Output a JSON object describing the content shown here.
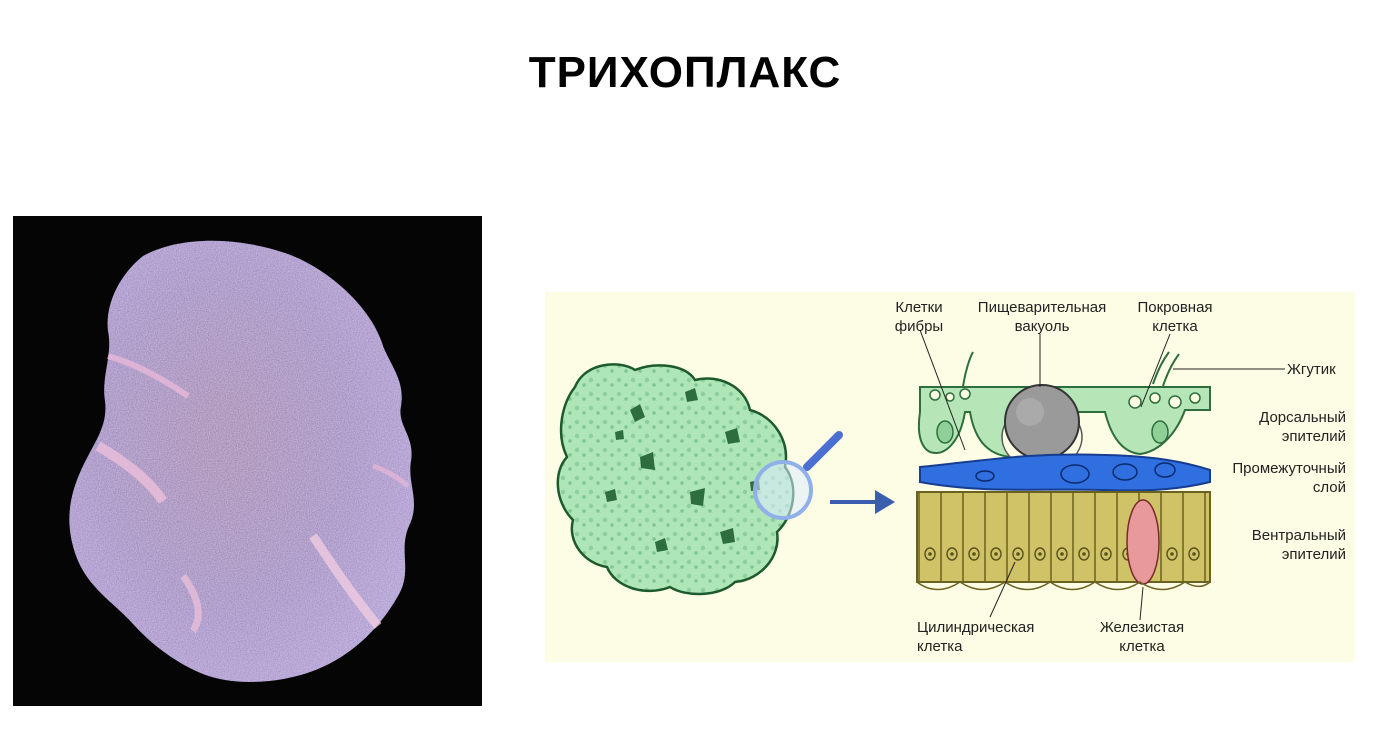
{
  "title": "ТРИХОПЛАКС",
  "labels": {
    "fiber_cells": [
      "Клетки",
      "фибры"
    ],
    "digestive_vacuole": [
      "Пищеварительная",
      "вакуоль"
    ],
    "cover_cell": [
      "Покровная",
      "клетка"
    ],
    "flagellum": "Жгутик",
    "dorsal_epithelium": [
      "Дорсальный",
      "эпителий"
    ],
    "intermediate_layer": [
      "Промежуточный",
      "слой"
    ],
    "ventral_epithelium": [
      "Вентральный",
      "эпителий"
    ],
    "cylindrical_cell": [
      "Цилиндрическая",
      "клетка"
    ],
    "glandular_cell": [
      "Железистая",
      "клетка"
    ]
  },
  "colors": {
    "photo_bg": "#050505",
    "organism": "#8a6aa8",
    "diagram_bg": "#fdfde6",
    "body_green": "#aee6b8",
    "dorsal_green": "#b6e6b8",
    "intermediate_blue": "#2f6fe0",
    "ventral_yellow": "#cfc267",
    "glandular_red": "#e7999b",
    "arrow_blue": "#3a5db0"
  }
}
